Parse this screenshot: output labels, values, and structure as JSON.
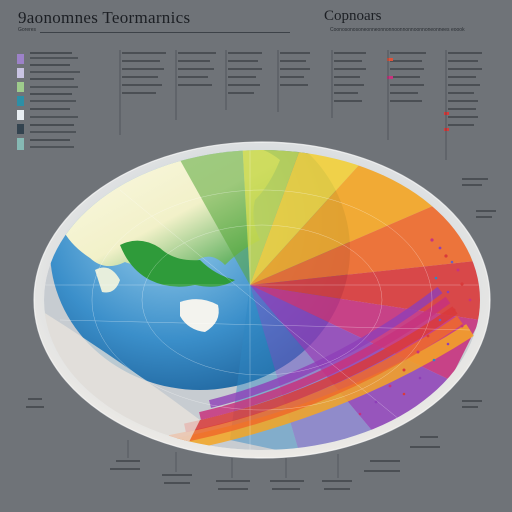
{
  "header": {
    "title": "9aonomnes Teormarnics",
    "subtitle": "Copnoars",
    "left_caption": "Goreres",
    "right_caption": "Coonosonosoneonneonnonnoonnonnoonnoneonnees eoook"
  },
  "colors": {
    "background": "#6f7378",
    "globe_rim": "#f2ece4",
    "land": "#2f9b3a",
    "ocean": "#2f88c4",
    "spectrum": [
      "#c8d84c",
      "#f4d23a",
      "#f5a623",
      "#ef6a2a",
      "#d93a3a",
      "#c7337e",
      "#8e3fb8"
    ]
  },
  "legend": {
    "swatches": [
      "#9d82c9",
      "#c9c4e3",
      "#9ecb8c",
      "#2d8fa6",
      "#e8eef2",
      "#33434f",
      "#86b9b4"
    ]
  }
}
